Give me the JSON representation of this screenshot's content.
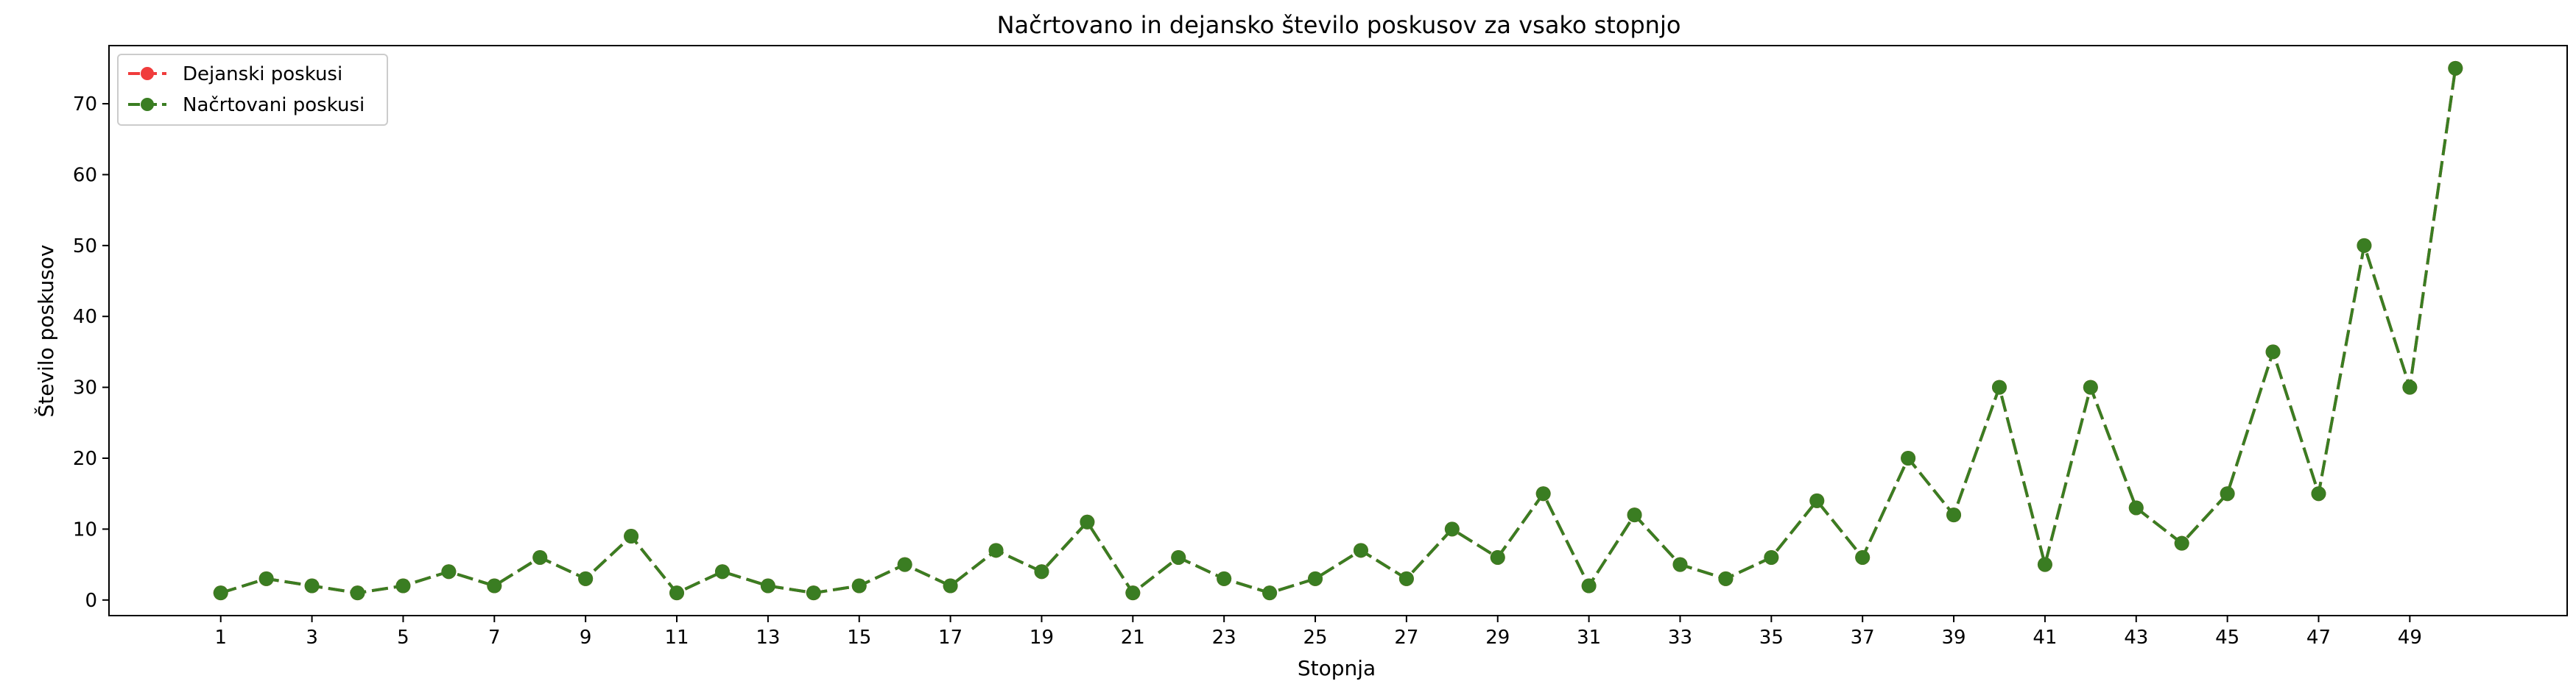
{
  "chart_data": {
    "type": "line",
    "title": "Načrtovano in dejansko število poskusov za vsako stopnjo",
    "xlabel": "Stopnja",
    "ylabel": "Število poskusov",
    "x": [
      1,
      2,
      3,
      4,
      5,
      6,
      7,
      8,
      9,
      10,
      11,
      12,
      13,
      14,
      15,
      16,
      17,
      18,
      19,
      20,
      21,
      22,
      23,
      24,
      25,
      26,
      27,
      28,
      29,
      30,
      31,
      32,
      33,
      34,
      35,
      36,
      37,
      38,
      39,
      40,
      41,
      42,
      43,
      44,
      45,
      46,
      47,
      48,
      49,
      50
    ],
    "x_ticks": [
      1,
      3,
      5,
      7,
      9,
      11,
      13,
      15,
      17,
      19,
      21,
      23,
      25,
      27,
      29,
      31,
      33,
      35,
      37,
      39,
      41,
      43,
      45,
      47,
      49
    ],
    "y_ticks": [
      0,
      10,
      20,
      30,
      40,
      50,
      60,
      70
    ],
    "xlim": [
      -1.45,
      52.45
    ],
    "ylim": [
      -2.2,
      78.2
    ],
    "grid": false,
    "legend_position": "top-left",
    "series": [
      {
        "name": "Dejanski poskusi",
        "color": "#f03c3c",
        "style": "dashed-marker",
        "values": [
          1,
          3,
          2,
          1,
          2,
          4,
          2,
          6,
          3,
          9,
          1,
          4,
          2,
          1,
          2,
          5,
          2,
          7,
          4,
          11,
          1,
          6,
          3,
          1,
          3,
          7,
          3,
          10,
          6,
          15,
          2,
          12,
          5,
          3,
          6,
          14,
          6,
          20,
          12,
          30,
          5,
          30,
          13,
          8,
          15,
          35,
          15,
          50,
          30,
          75
        ]
      },
      {
        "name": "Načrtovani poskusi",
        "color": "#3a7d22",
        "style": "dashed-marker",
        "values": [
          1,
          3,
          2,
          1,
          2,
          4,
          2,
          6,
          3,
          9,
          1,
          4,
          2,
          1,
          2,
          5,
          2,
          7,
          4,
          11,
          1,
          6,
          3,
          1,
          3,
          7,
          3,
          10,
          6,
          15,
          2,
          12,
          5,
          3,
          6,
          14,
          6,
          20,
          12,
          30,
          5,
          30,
          13,
          8,
          15,
          35,
          15,
          50,
          30,
          75
        ]
      }
    ]
  }
}
